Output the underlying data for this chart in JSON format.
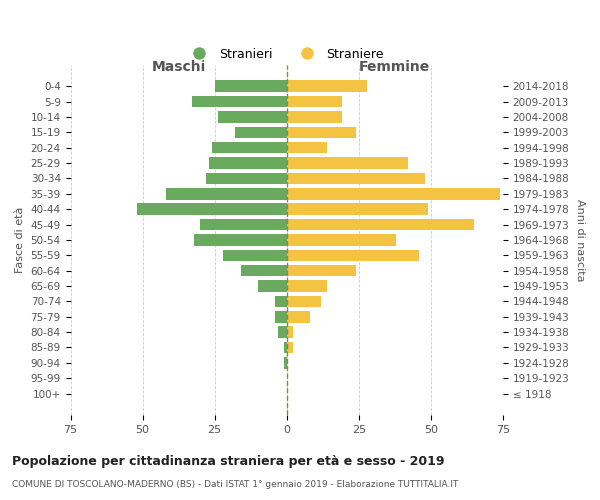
{
  "age_groups": [
    "100+",
    "95-99",
    "90-94",
    "85-89",
    "80-84",
    "75-79",
    "70-74",
    "65-69",
    "60-64",
    "55-59",
    "50-54",
    "45-49",
    "40-44",
    "35-39",
    "30-34",
    "25-29",
    "20-24",
    "15-19",
    "10-14",
    "5-9",
    "0-4"
  ],
  "birth_years": [
    "≤ 1918",
    "1919-1923",
    "1924-1928",
    "1929-1933",
    "1934-1938",
    "1939-1943",
    "1944-1948",
    "1949-1953",
    "1954-1958",
    "1959-1963",
    "1964-1968",
    "1969-1973",
    "1974-1978",
    "1979-1983",
    "1984-1988",
    "1989-1993",
    "1994-1998",
    "1999-2003",
    "2004-2008",
    "2009-2013",
    "2014-2018"
  ],
  "males": [
    0,
    0,
    1,
    1,
    3,
    4,
    4,
    10,
    16,
    22,
    32,
    30,
    52,
    42,
    28,
    27,
    26,
    18,
    24,
    33,
    25
  ],
  "females": [
    0,
    0,
    0,
    2,
    2,
    8,
    12,
    14,
    24,
    46,
    38,
    65,
    49,
    74,
    48,
    42,
    14,
    24,
    19,
    19,
    28
  ],
  "male_color": "#6aaa5f",
  "female_color": "#f5c342",
  "title": "Popolazione per cittadinanza straniera per età e sesso - 2019",
  "subtitle": "COMUNE DI TOSCOLANO-MADERNO (BS) - Dati ISTAT 1° gennaio 2019 - Elaborazione TUTTITALIA.IT",
  "xlabel_left": "Maschi",
  "xlabel_right": "Femmine",
  "ylabel_left": "Fasce di età",
  "ylabel_right": "Anni di nascita",
  "xlim": 75,
  "legend_stranieri": "Stranieri",
  "legend_straniere": "Straniere",
  "background_color": "#ffffff",
  "grid_color": "#cccccc"
}
